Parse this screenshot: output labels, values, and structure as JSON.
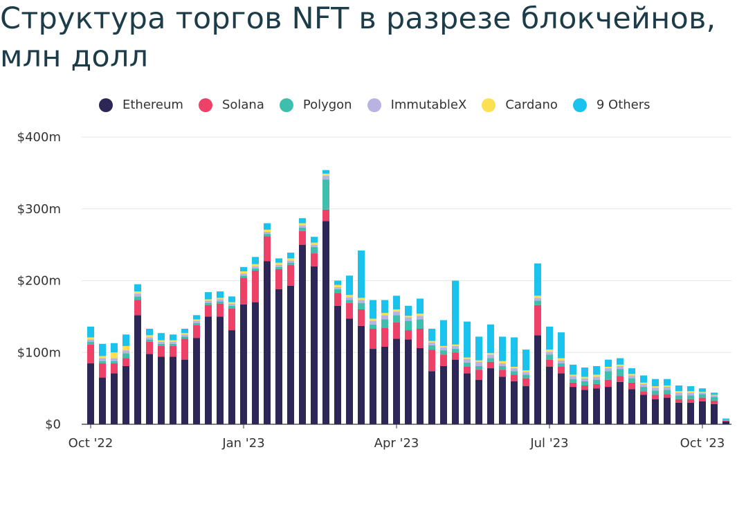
{
  "title": "Структура торгов NFT в разрезе блокчейнов, млн долл",
  "legend": [
    {
      "name": "Ethereum",
      "color": "#2d2757"
    },
    {
      "name": "Solana",
      "color": "#ed4168"
    },
    {
      "name": "Polygon",
      "color": "#3ebfad"
    },
    {
      "name": "ImmutableX",
      "color": "#b9b3e3"
    },
    {
      "name": "Cardano",
      "color": "#fde052"
    },
    {
      "name": "9 Others",
      "color": "#19c3ee"
    }
  ],
  "chart_data": {
    "type": "bar",
    "stacked": true,
    "title": "Структура торгов NFT в разрезе блокчейнов, млн долл",
    "xlabel": "",
    "ylabel": "",
    "ylim": [
      0,
      400
    ],
    "yticks": [
      "$0",
      "$100m",
      "$200m",
      "$300m",
      "$400m"
    ],
    "yticks_values": [
      0,
      100,
      200,
      300,
      400
    ],
    "xticks": [
      {
        "label": "Oct '22",
        "index": 0
      },
      {
        "label": "Jan '23",
        "index": 13
      },
      {
        "label": "Apr '23",
        "index": 26
      },
      {
        "label": "Jul '23",
        "index": 39
      },
      {
        "label": "Oct '23",
        "index": 52
      }
    ],
    "grid": true,
    "legend_position": "top",
    "unit": "weekly, $m",
    "series": [
      {
        "name": "Ethereum",
        "color": "#2d2757",
        "values": [
          85,
          65,
          71,
          81,
          152,
          98,
          94,
          94,
          90,
          120,
          150,
          150,
          131,
          167,
          170,
          227,
          188,
          193,
          250,
          220,
          283,
          165,
          147,
          137,
          105,
          108,
          119,
          118,
          106,
          74,
          81,
          90,
          71,
          62,
          78,
          66,
          60,
          53,
          124,
          80,
          71,
          52,
          48,
          50,
          52,
          59,
          49,
          41,
          35,
          37,
          30,
          30,
          32,
          28,
          4
        ]
      },
      {
        "name": "Solana",
        "color": "#ed4168",
        "values": [
          26,
          20,
          14,
          11,
          21,
          17,
          15,
          15,
          29,
          18,
          16,
          18,
          30,
          37,
          44,
          35,
          28,
          29,
          19,
          18,
          16,
          18,
          22,
          23,
          28,
          26,
          23,
          13,
          27,
          30,
          16,
          10,
          9,
          14,
          9,
          10,
          9,
          11,
          42,
          10,
          9,
          6,
          6,
          6,
          10,
          8,
          9,
          5,
          6,
          5,
          5,
          5,
          5,
          5,
          1
        ]
      },
      {
        "name": "Polygon",
        "color": "#3ebfad",
        "values": [
          4,
          3,
          3,
          7,
          5,
          3,
          3,
          3,
          3,
          3,
          3,
          3,
          4,
          3,
          3,
          3,
          3,
          3,
          5,
          9,
          42,
          5,
          4,
          9,
          6,
          12,
          10,
          13,
          13,
          6,
          6,
          5,
          6,
          5,
          5,
          5,
          5,
          5,
          6,
          7,
          5,
          5,
          6,
          6,
          12,
          10,
          6,
          6,
          6,
          6,
          5,
          5,
          5,
          5,
          1
        ]
      },
      {
        "name": "ImmutableX",
        "color": "#b9b3e3",
        "values": [
          3,
          4,
          4,
          4,
          4,
          3,
          3,
          3,
          3,
          3,
          3,
          3,
          3,
          3,
          3,
          3,
          3,
          3,
          3,
          3,
          5,
          3,
          4,
          4,
          5,
          6,
          5,
          5,
          5,
          4,
          4,
          4,
          5,
          6,
          5,
          4,
          4,
          4,
          4,
          4,
          4,
          4,
          4,
          4,
          4,
          4,
          4,
          4,
          4,
          4,
          4,
          4,
          2,
          2,
          0
        ]
      },
      {
        "name": "Cardano",
        "color": "#fde052",
        "values": [
          3,
          3,
          8,
          6,
          3,
          3,
          2,
          2,
          2,
          2,
          2,
          2,
          2,
          3,
          3,
          3,
          3,
          3,
          3,
          3,
          3,
          3,
          3,
          3,
          3,
          3,
          3,
          2,
          3,
          2,
          2,
          2,
          2,
          2,
          2,
          3,
          2,
          2,
          3,
          3,
          3,
          2,
          2,
          3,
          2,
          2,
          2,
          2,
          2,
          2,
          2,
          2,
          1,
          1,
          0
        ]
      },
      {
        "name": "9 Others",
        "color": "#19c3ee",
        "values": [
          15,
          17,
          13,
          16,
          10,
          9,
          10,
          8,
          6,
          6,
          10,
          9,
          8,
          6,
          10,
          9,
          6,
          8,
          7,
          8,
          5,
          6,
          27,
          66,
          26,
          18,
          19,
          14,
          21,
          17,
          36,
          89,
          50,
          33,
          40,
          34,
          41,
          29,
          45,
          32,
          36,
          14,
          13,
          12,
          10,
          9,
          8,
          10,
          10,
          9,
          8,
          7,
          5,
          3,
          2
        ]
      }
    ]
  }
}
